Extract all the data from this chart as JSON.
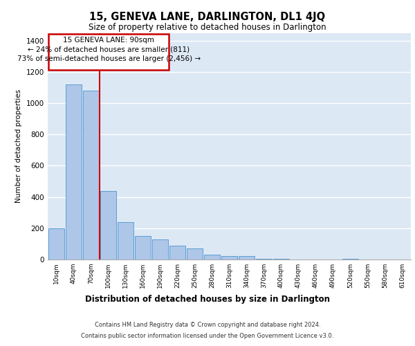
{
  "title": "15, GENEVA LANE, DARLINGTON, DL1 4JQ",
  "subtitle": "Size of property relative to detached houses in Darlington",
  "xlabel": "Distribution of detached houses by size in Darlington",
  "ylabel": "Number of detached properties",
  "categories": [
    "10sqm",
    "40sqm",
    "70sqm",
    "100sqm",
    "130sqm",
    "160sqm",
    "190sqm",
    "220sqm",
    "250sqm",
    "280sqm",
    "310sqm",
    "340sqm",
    "370sqm",
    "400sqm",
    "430sqm",
    "460sqm",
    "490sqm",
    "520sqm",
    "550sqm",
    "580sqm",
    "610sqm"
  ],
  "values": [
    200,
    1120,
    1080,
    440,
    240,
    150,
    130,
    90,
    70,
    30,
    20,
    20,
    5,
    5,
    0,
    0,
    0,
    5,
    0,
    0,
    0
  ],
  "bar_color": "#aec6e8",
  "bar_edge_color": "#5a9fd4",
  "bg_color": "#dde8f5",
  "grid_color": "#ffffff",
  "vline_color": "#cc0000",
  "annotation_line1": "15 GENEVA LANE: 90sqm",
  "annotation_line2": "← 24% of detached houses are smaller (811)",
  "annotation_line3": "73% of semi-detached houses are larger (2,456) →",
  "annotation_box_color": "#cc0000",
  "ylim": [
    0,
    1450
  ],
  "yticks": [
    0,
    200,
    400,
    600,
    800,
    1000,
    1200,
    1400
  ],
  "footer_line1": "Contains HM Land Registry data © Crown copyright and database right 2024.",
  "footer_line2": "Contains public sector information licensed under the Open Government Licence v3.0."
}
